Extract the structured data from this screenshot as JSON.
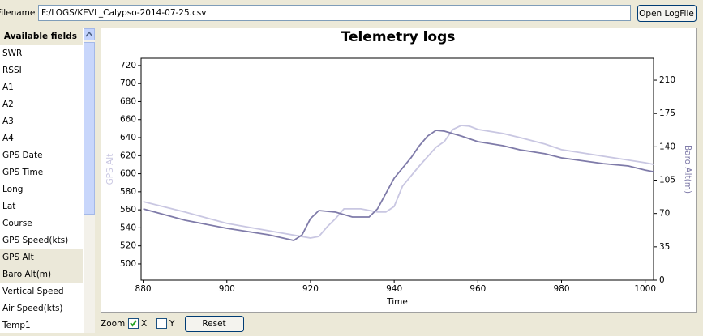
{
  "header": {
    "label": "Filename",
    "path": "F:/LOGS/KEVL_Calypso-2014-07-25.csv",
    "button": "Open LogFile"
  },
  "sidebar": {
    "title": "Available fields",
    "fields": [
      "SWR",
      "RSSI",
      "A1",
      "A2",
      "A3",
      "A4",
      "GPS Date",
      "GPS Time",
      "Long",
      "Lat",
      "Course",
      "GPS Speed(kts)",
      "GPS Alt",
      "Baro Alt(m)",
      "Vertical Speed",
      "Air Speed(kts)",
      "Temp1"
    ],
    "selected_indices": [
      12,
      13
    ]
  },
  "chart_data": {
    "type": "line",
    "title": "Telemetry logs",
    "x_label": "Time",
    "y_label": "GPS Alt",
    "y2_label": "Baro Alt(m)",
    "xlim": [
      879.5,
      1002
    ],
    "xticks": [
      880,
      900,
      920,
      940,
      960,
      980,
      1000
    ],
    "ylim": [
      482,
      728
    ],
    "yticks": [
      500,
      520,
      540,
      560,
      580,
      600,
      620,
      640,
      660,
      680,
      700,
      720
    ],
    "y2lim": [
      0,
      233
    ],
    "y2ticks": [
      0,
      35,
      70,
      105,
      140,
      175,
      210
    ],
    "grid": false,
    "series": [
      {
        "name": "GPS Alt",
        "color": "#c9c7e2",
        "x": [
          880,
          890,
          900,
          910,
          920,
          922,
          924,
          926,
          928,
          932,
          936,
          938,
          940,
          942,
          946,
          950,
          952,
          954,
          956,
          958,
          960,
          966,
          970,
          976,
          980,
          990,
          1000,
          1002
        ],
        "values": [
          569.1,
          557.5,
          544.9,
          536.8,
          528.7,
          530.5,
          541.3,
          550.3,
          561.1,
          561.1,
          557.5,
          557.5,
          563.7,
          586.2,
          608.6,
          629.3,
          635.6,
          649.1,
          653.5,
          652.7,
          649.1,
          644.6,
          640.1,
          632.9,
          626.6,
          619.4,
          612.2,
          610.4
        ]
      },
      {
        "name": "Baro Alt(m)",
        "color": "#7f7ba9",
        "axis": "y2",
        "x": [
          880,
          890,
          900,
          910,
          916,
          918,
          920,
          922,
          926,
          930,
          934,
          936,
          940,
          944,
          946,
          948,
          950,
          952,
          956,
          960,
          966,
          970,
          976,
          980,
          990,
          996,
          1000,
          1002
        ],
        "values": [
          74.8,
          62.9,
          54.4,
          47.6,
          41.7,
          47.6,
          64.6,
          73.1,
          71.4,
          66.3,
          66.3,
          74.8,
          107.1,
          128.4,
          141.2,
          151.4,
          157.3,
          156.5,
          151.4,
          145.4,
          141.2,
          136.9,
          132.7,
          128.4,
          122.4,
          119.9,
          115.6,
          113.9
        ]
      }
    ]
  },
  "zoom": {
    "label": "Zoom",
    "x": {
      "label": "X",
      "checked": true
    },
    "y": {
      "label": "Y",
      "checked": false
    },
    "button": "Reset"
  }
}
